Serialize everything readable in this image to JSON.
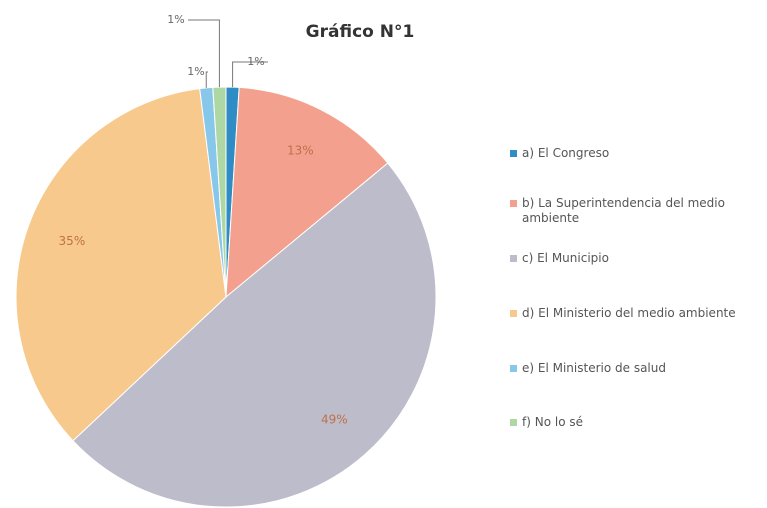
{
  "chart_data": {
    "type": "pie",
    "title": "Gráfico N°1",
    "categories": [
      "a) El Congreso",
      "b) La Superintendencia del medio ambiente",
      "c) El Municipio",
      "d) El Ministerio del medio ambiente",
      "e) El Ministerio de salud",
      "f) No lo sé"
    ],
    "values": [
      1,
      13,
      49,
      35,
      1,
      1
    ],
    "value_labels": [
      "1%",
      "13%",
      "49%",
      "35%",
      "1%",
      "1%"
    ],
    "colors": [
      "#2f8cc4",
      "#f4a08e",
      "#bcbccb",
      "#f8c98c",
      "#86c7ea",
      "#aed7a6"
    ],
    "legend": "right"
  }
}
